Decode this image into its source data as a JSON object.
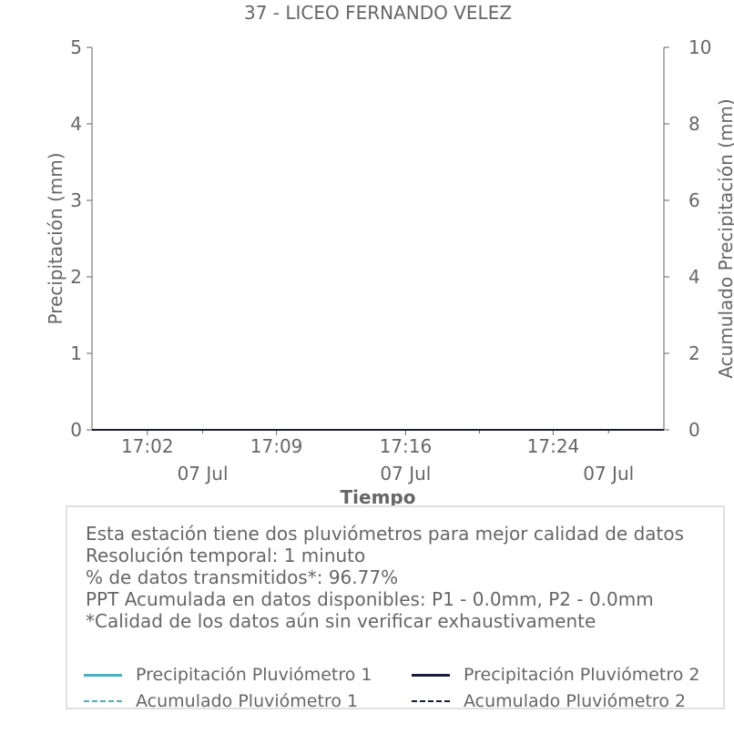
{
  "colors": {
    "p1": "#4bb0bf",
    "p2": "#1a1b3a",
    "text": "#666666",
    "axis": "#666666"
  },
  "chart_data": {
    "type": "line",
    "title": "37 - LICEO FERNANDO VELEZ",
    "xlabel": "Tiempo",
    "ylabel_left": "Precipitación (mm)",
    "ylabel_right": "Acumulado Precipitación (mm)",
    "ylim_left": [
      0,
      5
    ],
    "ylim_right": [
      0,
      10
    ],
    "yticks_left": [
      "0",
      "1",
      "2",
      "3",
      "4",
      "5"
    ],
    "yticks_right": [
      "0",
      "2",
      "4",
      "6",
      "8",
      "10"
    ],
    "xlim": [
      "16:59",
      "17:30"
    ],
    "xticks": [
      {
        "time": "17:02",
        "label": "17:02"
      },
      {
        "time": "17:09",
        "label": "17:09"
      },
      {
        "time": "17:16",
        "label": "17:16"
      },
      {
        "time": "17:24",
        "label": "17:24"
      }
    ],
    "xticks_minor": [
      "17:05",
      "17:20",
      "17:27"
    ],
    "date_labels": [
      {
        "time": "17:05",
        "label": "07 Jul"
      },
      {
        "time": "17:16",
        "label": "07 Jul"
      },
      {
        "time": "17:27",
        "label": "07 Jul"
      }
    ],
    "grid": false,
    "legend_placement": "bottom",
    "series": [
      {
        "name": "Precipitación Pluviómetro 1",
        "axis": "left",
        "style": "solid",
        "color": "#4bb0bf",
        "x": [
          "16:59",
          "17:30"
        ],
        "values": [
          0,
          0
        ]
      },
      {
        "name": "Precipitación Pluviómetro 2",
        "axis": "left",
        "style": "solid",
        "color": "#1a1b3a",
        "x": [
          "16:59",
          "17:30"
        ],
        "values": [
          0,
          0
        ]
      },
      {
        "name": "Acumulado Pluviómetro 1",
        "axis": "right",
        "style": "dashed",
        "color": "#4bb0bf",
        "x": [
          "16:59",
          "17:30"
        ],
        "values": [
          0,
          0
        ]
      },
      {
        "name": "Acumulado Pluviómetro 2",
        "axis": "right",
        "style": "dashed",
        "color": "#1a1b3a",
        "x": [
          "16:59",
          "17:30"
        ],
        "values": [
          0,
          0
        ]
      }
    ]
  },
  "info": {
    "lines": [
      "Esta estación tiene dos pluviómetros para mejor calidad de datos",
      "Resolución temporal: 1 minuto",
      "% de datos transmitidos*: 96.77%",
      "PPT Acumulada en datos disponibles: P1 - 0.0mm, P2 - 0.0mm",
      "*Calidad de los datos aún sin verificar exhaustivamente"
    ]
  }
}
